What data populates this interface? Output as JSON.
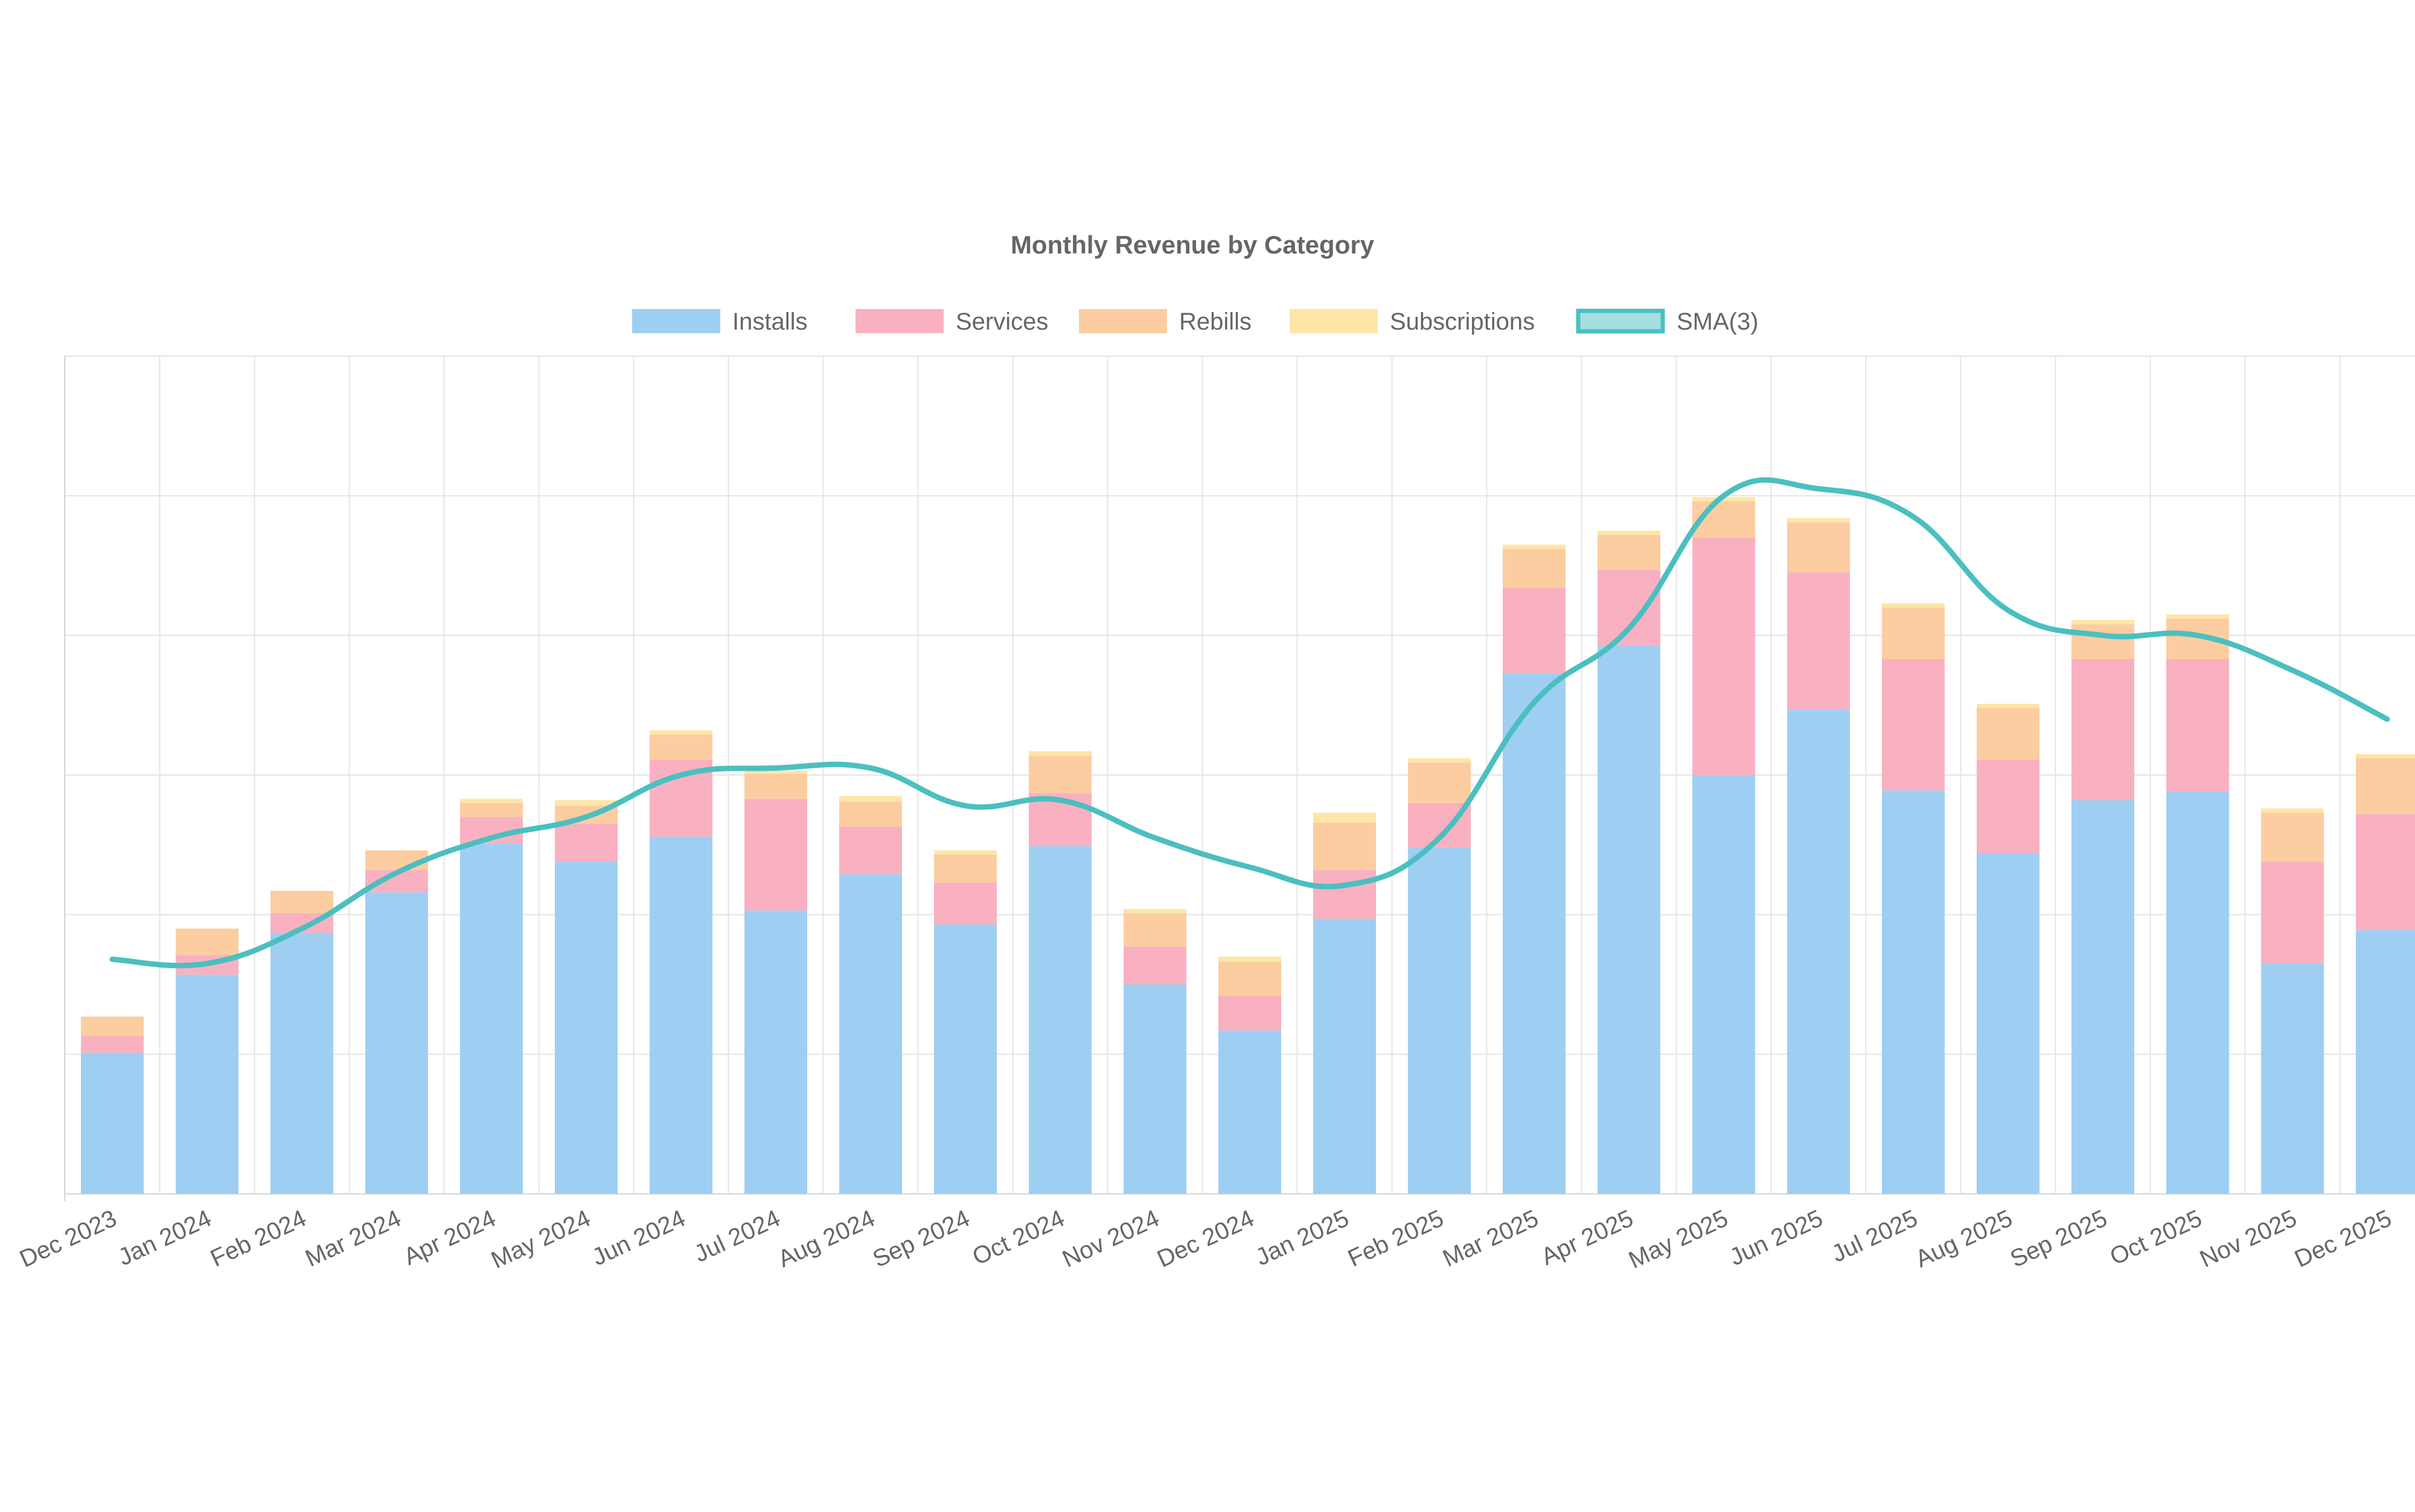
{
  "chart_data": {
    "type": "bar",
    "stacked": true,
    "title": "Monthly Revenue by Category",
    "xlabel": "",
    "ylabel": "",
    "ylim": [
      0,
      600
    ],
    "ytick_step": 100,
    "ytick_labels_visible": false,
    "grid": true,
    "legend_position": "top-center",
    "categories": [
      "Dec 2023",
      "Jan 2024",
      "Feb 2024",
      "Mar 2024",
      "Apr 2024",
      "May 2024",
      "Jun 2024",
      "Jul 2024",
      "Aug 2024",
      "Sep 2024",
      "Oct 2024",
      "Nov 2024",
      "Dec 2024",
      "Jan 2025",
      "Feb 2025",
      "Mar 2025",
      "Apr 2025",
      "May 2025",
      "Jun 2025",
      "Jul 2025",
      "Aug 2025",
      "Sep 2025",
      "Oct 2025",
      "Nov 2025",
      "Dec 2025"
    ],
    "series": [
      {
        "name": "Installs",
        "kind": "bar",
        "color": "#9ecff2",
        "values": [
          101,
          157,
          187,
          216,
          251,
          238,
          256,
          203,
          229,
          193,
          249,
          150,
          117,
          197,
          248,
          373,
          393,
          300,
          347,
          289,
          244,
          282,
          288,
          165,
          189
        ]
      },
      {
        "name": "Services",
        "kind": "bar",
        "color": "#f9b1c1",
        "values": [
          12,
          14,
          14,
          16,
          19,
          27,
          55,
          80,
          34,
          30,
          38,
          27,
          25,
          35,
          32,
          61,
          54,
          170,
          98,
          94,
          67,
          101,
          95,
          73,
          83
        ]
      },
      {
        "name": "Rebills",
        "kind": "bar",
        "color": "#fccda0",
        "values": [
          14,
          19,
          16,
          14,
          10,
          13,
          18,
          18,
          18,
          20,
          27,
          24,
          24,
          34,
          29,
          28,
          25,
          26,
          36,
          37,
          37,
          25,
          29,
          35,
          40
        ]
      },
      {
        "name": "Subscriptions",
        "kind": "bar",
        "color": "#fde6a6",
        "values": [
          0,
          0,
          0,
          0,
          3,
          4,
          3,
          2,
          4,
          3,
          3,
          3,
          4,
          7,
          3,
          3,
          3,
          3,
          3,
          3,
          3,
          3,
          3,
          3,
          3
        ]
      },
      {
        "name": "SMA(3)",
        "kind": "line",
        "color": "#4bbfc0",
        "values": [
          168,
          165,
          190,
          230,
          255,
          270,
          300,
          305,
          305,
          278,
          282,
          255,
          234,
          221,
          255,
          352,
          405,
          500,
          505,
          485,
          418,
          400,
          400,
          375,
          340
        ]
      }
    ]
  }
}
